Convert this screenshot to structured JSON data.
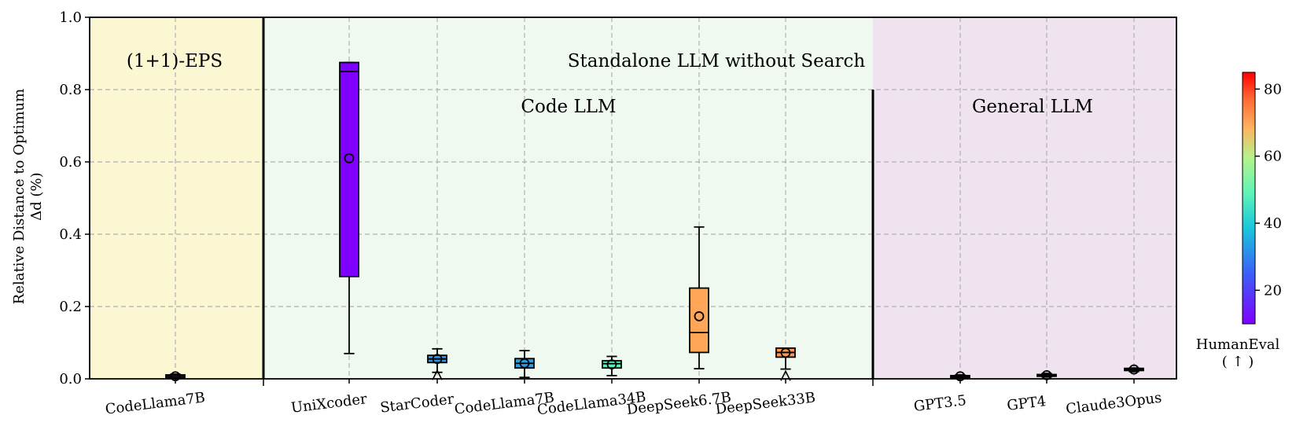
{
  "chart_data": {
    "type": "box",
    "ylabel_line1": "Relative Distance to Optimum",
    "ylabel_line2": "Δd (%)",
    "ylim": [
      0,
      1.0
    ],
    "yticks": [
      "0.0",
      "0.2",
      "0.4",
      "0.6",
      "0.8",
      "1.0"
    ],
    "regions": [
      {
        "name": "(1+1)-EPS",
        "color": "#fbf7d2"
      },
      {
        "name": "Standalone LLM without Search",
        "color": "#f0f9ef"
      },
      {
        "name": "General LLM",
        "color": "#efe3ef"
      }
    ],
    "subregion_label": "Code LLM",
    "categories": [
      "CodeLlama7B",
      "UniXcoder",
      "StarCoder",
      "CodeLlama7B",
      "CodeLlama34B",
      "DeepSeek6.7B",
      "DeepSeek33B",
      "GPT3.5",
      "GPT4",
      "Claude3Opus"
    ],
    "boxes": [
      {
        "q1": 0.003,
        "median": 0.007,
        "q3": 0.011,
        "whisker_low": 0.001,
        "whisker_high": 0.013,
        "mean": 0.007,
        "humaneval": 33,
        "outliers": []
      },
      {
        "q1": 0.283,
        "median": 0.85,
        "q3": 0.875,
        "whisker_low": 0.07,
        "whisker_high": 0.875,
        "mean": 0.61,
        "humaneval": 10,
        "outliers": []
      },
      {
        "q1": 0.045,
        "median": 0.055,
        "q3": 0.065,
        "whisker_low": 0.018,
        "whisker_high": 0.083,
        "mean": 0.055,
        "humaneval": 32,
        "outliers": [
          0.01
        ]
      },
      {
        "q1": 0.03,
        "median": 0.043,
        "q3": 0.056,
        "whisker_low": 0.004,
        "whisker_high": 0.078,
        "mean": 0.043,
        "humaneval": 33,
        "outliers": []
      },
      {
        "q1": 0.03,
        "median": 0.042,
        "q3": 0.05,
        "whisker_low": 0.009,
        "whisker_high": 0.062,
        "mean": 0.04,
        "humaneval": 48,
        "outliers": []
      },
      {
        "q1": 0.073,
        "median": 0.128,
        "q3": 0.251,
        "whisker_low": 0.028,
        "whisker_high": 0.42,
        "mean": 0.173,
        "humaneval": 70,
        "outliers": []
      },
      {
        "q1": 0.06,
        "median": 0.073,
        "q3": 0.085,
        "whisker_low": 0.027,
        "whisker_high": 0.085,
        "mean": 0.072,
        "humaneval": 72,
        "outliers": [
          0.008
        ]
      },
      {
        "q1": 0.004,
        "median": 0.006,
        "q3": 0.009,
        "whisker_low": 0.002,
        "whisker_high": 0.011,
        "mean": 0.007,
        "humaneval": 70,
        "outliers": []
      },
      {
        "q1": 0.007,
        "median": 0.01,
        "q3": 0.012,
        "whisker_low": 0.005,
        "whisker_high": 0.015,
        "mean": 0.01,
        "humaneval": 84,
        "outliers": []
      },
      {
        "q1": 0.023,
        "median": 0.026,
        "q3": 0.029,
        "whisker_low": 0.02,
        "whisker_high": 0.03,
        "mean": 0.026,
        "humaneval": 84,
        "outliers": []
      }
    ],
    "colorbar": {
      "label": "HumanEval",
      "sublabel": "( ↑ )",
      "range": [
        10,
        85
      ],
      "ticks": [
        "20",
        "40",
        "60",
        "80"
      ]
    }
  }
}
